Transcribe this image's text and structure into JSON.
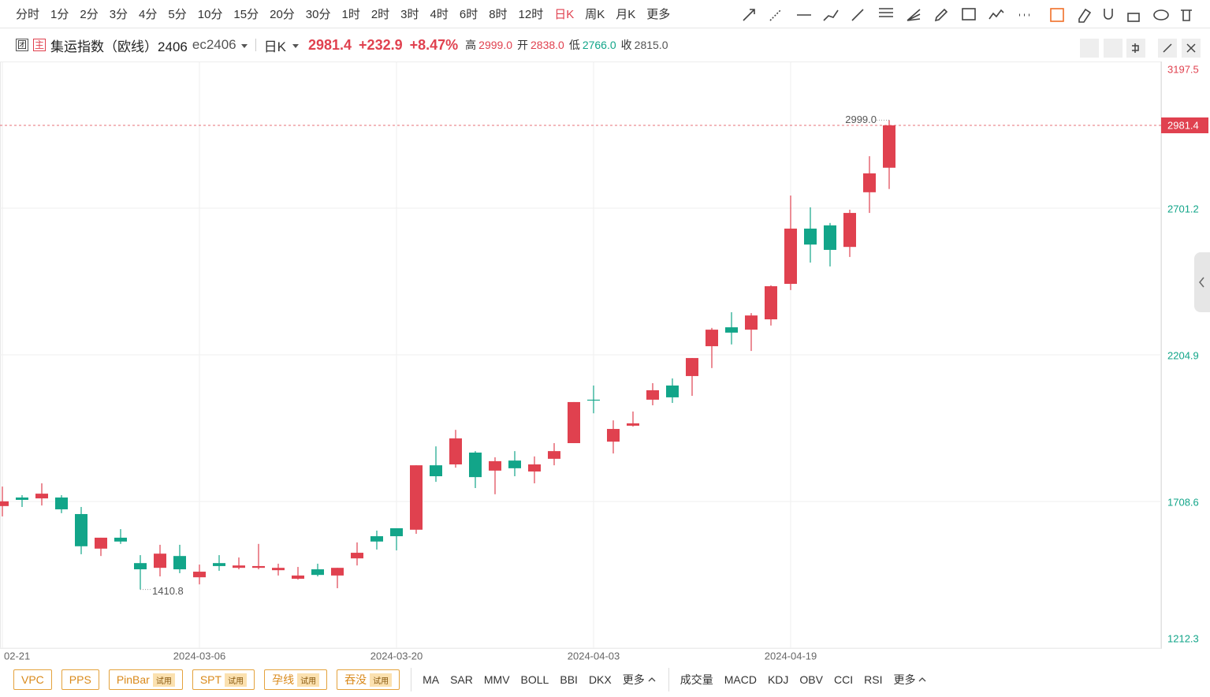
{
  "toolbar": {
    "periods": [
      "分时",
      "1分",
      "2分",
      "3分",
      "4分",
      "5分",
      "10分",
      "15分",
      "20分",
      "30分",
      "1时",
      "2时",
      "3时",
      "4时",
      "6时",
      "8时",
      "12时",
      "日K",
      "周K",
      "月K"
    ],
    "active_period": "日K",
    "more": "更多"
  },
  "header": {
    "icon_group": "团",
    "icon_main": "主",
    "name": "集运指数（欧线）2406",
    "code": "ec2406",
    "period": "日K",
    "price": "2981.4",
    "change": "+232.9",
    "change_pct": "+8.47%",
    "stats": [
      {
        "label": "高",
        "value": "2999.0",
        "tone": "up"
      },
      {
        "label": "开",
        "value": "2838.0",
        "tone": "up"
      },
      {
        "label": "低",
        "value": "2766.0",
        "tone": "down"
      },
      {
        "label": "收",
        "value": "2815.0",
        "tone": "flat"
      }
    ]
  },
  "chart_data": {
    "type": "candlestick",
    "categories": [
      "02-21",
      null,
      null,
      null,
      null,
      null,
      null,
      null,
      null,
      null,
      "2024-03-06",
      null,
      null,
      null,
      null,
      null,
      null,
      null,
      null,
      null,
      "2024-03-20",
      null,
      null,
      null,
      null,
      null,
      null,
      null,
      null,
      null,
      "2024-04-03",
      null,
      null,
      null,
      null,
      null,
      null,
      null,
      null,
      null,
      "2024-04-19",
      null,
      null,
      null,
      null,
      null
    ],
    "open": [
      1693,
      1722,
      1719,
      1722,
      1666,
      1549,
      1586,
      1500,
      1484,
      1524,
      1452,
      1500,
      1484,
      1484,
      1476,
      1447,
      1479,
      1458,
      1516,
      1591,
      1618,
      1613,
      1831,
      1834,
      1874,
      1813,
      1847,
      1810,
      1853,
      1906,
      2053,
      1911,
      1965,
      2053,
      2101,
      2133,
      2234,
      2298,
      2290,
      2325,
      2445,
      2632,
      2643,
      2570,
      2755,
      2838
    ],
    "high": [
      1759,
      1730,
      1770,
      1730,
      1690,
      1586,
      1615,
      1527,
      1562,
      1562,
      1495,
      1527,
      1519,
      1565,
      1498,
      1487,
      1498,
      1484,
      1570,
      1610,
      1618,
      1831,
      1895,
      1951,
      1879,
      1858,
      1879,
      1861,
      1906,
      2045,
      2101,
      1983,
      2013,
      2109,
      2125,
      2194,
      2296,
      2349,
      2346,
      2440,
      2744,
      2704,
      2651,
      2696,
      2877,
      2999
    ],
    "low": [
      1658,
      1690,
      1695,
      1669,
      1530,
      1524,
      1565,
      1410.8,
      1455,
      1466,
      1428,
      1474,
      1479,
      1479,
      1458,
      1444,
      1455,
      1415,
      1492,
      1546,
      1543,
      1599,
      1775,
      1823,
      1754,
      1733,
      1794,
      1770,
      1831,
      1906,
      2007,
      1871,
      1962,
      2034,
      2042,
      2066,
      2160,
      2240,
      2218,
      2304,
      2424,
      2517,
      2504,
      2536,
      2685,
      2766
    ],
    "close": [
      1709,
      1714,
      1735,
      1682,
      1557,
      1586,
      1573,
      1479,
      1532,
      1479,
      1471,
      1490,
      1492,
      1490,
      1484,
      1458,
      1460,
      1484,
      1535,
      1573,
      1591,
      1831,
      1794,
      1922,
      1791,
      1845,
      1821,
      1834,
      1879,
      2045,
      2050,
      1954,
      1973,
      2085,
      2061,
      2194,
      2290,
      2280,
      2338,
      2437,
      2632,
      2578,
      2560,
      2685,
      2819,
      2981.4
    ],
    "up_color": "#e0414f",
    "down_color": "#12a589",
    "ylim": [
      1212.3,
      3197.5
    ],
    "yticks": [
      1212.3,
      1708.6,
      2204.9,
      2701.2,
      3197.5
    ],
    "grid": true,
    "annotations": [
      {
        "value": 2999,
        "label": "2999.0",
        "kind": "high"
      },
      {
        "value": 1410.8,
        "label": "1410.8",
        "kind": "low"
      }
    ]
  },
  "indicators": {
    "patterns": [
      {
        "name": "VPC"
      },
      {
        "name": "PPS"
      },
      {
        "name": "PinBar",
        "badge": "试用"
      },
      {
        "name": "SPT",
        "badge": "试用"
      },
      {
        "name": "孕线",
        "badge": "试用"
      },
      {
        "name": "吞没",
        "badge": "试用"
      }
    ],
    "main": [
      "MA",
      "SAR",
      "MMV",
      "BOLL",
      "BBI",
      "DKX"
    ],
    "main_more": "更多",
    "sub": [
      "成交量",
      "MACD",
      "KDJ",
      "OBV",
      "CCI",
      "RSI"
    ],
    "sub_more": "更多"
  }
}
